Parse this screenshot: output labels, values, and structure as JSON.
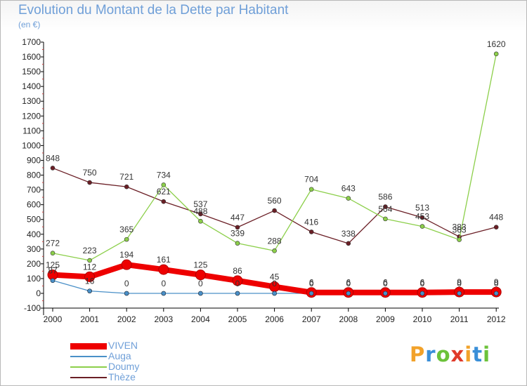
{
  "title": "Evolution du Montant de la Dette par Habitant",
  "subtitle": "(en €)",
  "logo_text": "Proxiti",
  "chart_data": {
    "type": "line",
    "categories": [
      "2000",
      "2001",
      "2002",
      "2003",
      "2004",
      "2005",
      "2006",
      "2007",
      "2008",
      "2009",
      "2010",
      "2011",
      "2012"
    ],
    "ylim": [
      -100,
      1700
    ],
    "yticks": [
      -100,
      0,
      100,
      200,
      300,
      400,
      500,
      600,
      700,
      800,
      900,
      1000,
      1100,
      1200,
      1300,
      1400,
      1500,
      1600,
      1700
    ],
    "grid": false,
    "legend_position": "bottom-left",
    "series": [
      {
        "name": "Thèze",
        "color": "#6b1f26",
        "values": [
          848,
          750,
          721,
          621,
          537,
          447,
          560,
          416,
          338,
          586,
          513,
          383,
          448
        ],
        "labels": [
          "848",
          "750",
          "721",
          "621",
          "537",
          "447",
          "560",
          "416",
          "338",
          "586",
          "513",
          "383",
          "448"
        ]
      },
      {
        "name": "Doumy",
        "color": "#8ccf4a",
        "values": [
          272,
          223,
          365,
          734,
          488,
          339,
          288,
          704,
          643,
          504,
          453,
          363,
          1620
        ],
        "labels": [
          "272",
          "223",
          "365",
          "734",
          "488",
          "339",
          "288",
          "704",
          "643",
          "504",
          "453",
          "363",
          "1620"
        ]
      },
      {
        "name": "Auga",
        "color": "#4a90c8",
        "values": [
          87,
          16,
          0,
          0,
          0,
          0,
          0,
          0,
          0,
          0,
          0,
          0,
          0
        ],
        "labels": [
          "87",
          "16",
          "0",
          "0",
          "0",
          "0",
          "0",
          "0",
          "0",
          "0",
          "0",
          "0",
          "0"
        ]
      },
      {
        "name": "VIVEN",
        "color": "#ee0000",
        "values": [
          125,
          112,
          194,
          161,
          125,
          86,
          45,
          6,
          6,
          6,
          6,
          9,
          9
        ],
        "labels": [
          "125",
          "112",
          "194",
          "161",
          "125",
          "86",
          "45",
          "6",
          "6",
          "6",
          "6",
          "9",
          "9"
        ]
      }
    ]
  },
  "legend": [
    {
      "name": "VIVEN",
      "color": "#ee0000",
      "thickness": 9
    },
    {
      "name": "Auga",
      "color": "#4a90c8",
      "thickness": 2
    },
    {
      "name": "Doumy",
      "color": "#8ccf4a",
      "thickness": 2
    },
    {
      "name": "Thèze",
      "color": "#6b1f26",
      "thickness": 2
    }
  ],
  "logo_colors": [
    "#f2a22a",
    "#3a8fd8",
    "#6cc23a",
    "#e03a2a",
    "#f2a22a",
    "#3a8fd8",
    "#6cc23a"
  ]
}
